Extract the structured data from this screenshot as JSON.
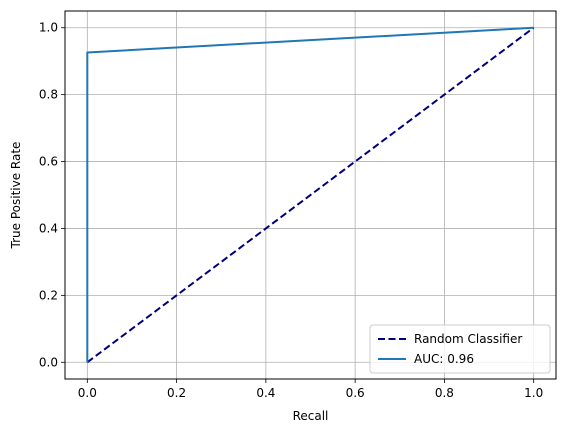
{
  "chart_data": {
    "type": "line",
    "xlabel": "Recall",
    "ylabel": "True Positive Rate",
    "xlim": [
      -0.05,
      1.05
    ],
    "ylim": [
      -0.05,
      1.05
    ],
    "xticks": [
      0.0,
      0.2,
      0.4,
      0.6,
      0.8,
      1.0
    ],
    "yticks": [
      0.0,
      0.2,
      0.4,
      0.6,
      0.8,
      1.0
    ],
    "xtick_labels": [
      "0.0",
      "0.2",
      "0.4",
      "0.6",
      "0.8",
      "1.0"
    ],
    "ytick_labels": [
      "0.0",
      "0.2",
      "0.4",
      "0.6",
      "0.8",
      "1.0"
    ],
    "grid": true,
    "legend_position": "lower-right",
    "series": [
      {
        "name": "Random Classifier",
        "style": "dashed",
        "color": "#000080",
        "x": [
          0.0,
          1.0
        ],
        "y": [
          0.0,
          1.0
        ]
      },
      {
        "name": "AUC: 0.96",
        "style": "solid",
        "color": "#1f77b4",
        "x": [
          0.0,
          0.0,
          1.0
        ],
        "y": [
          0.0,
          0.926,
          1.0
        ]
      }
    ]
  }
}
